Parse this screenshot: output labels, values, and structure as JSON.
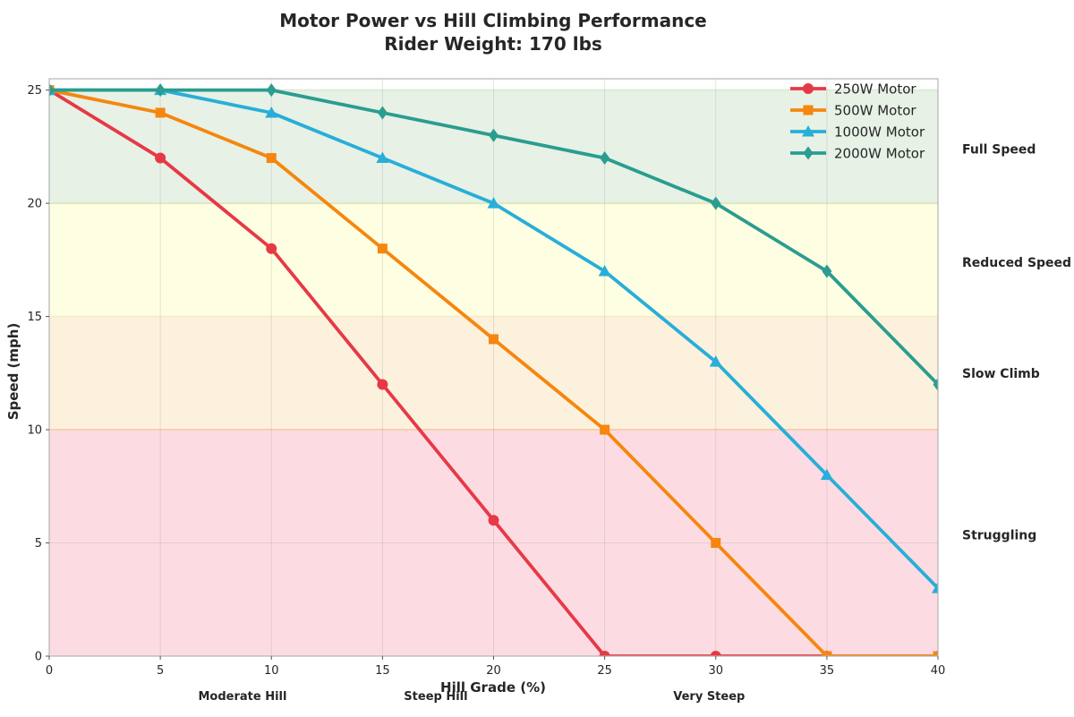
{
  "title": {
    "line1": "Motor Power vs Hill Climbing Performance",
    "line2": "Rider Weight: 170 lbs"
  },
  "chart_data": {
    "type": "line",
    "title": "Motor Power vs Hill Climbing Performance",
    "subtitle": "Rider Weight: 170 lbs",
    "xlabel": "Hill Grade (%)",
    "ylabel": "Speed (mph)",
    "xlim": [
      0,
      40
    ],
    "ylim": [
      0,
      25.5
    ],
    "x_ticks": [
      0,
      5,
      10,
      15,
      20,
      25,
      30,
      35,
      40
    ],
    "y_ticks": [
      0,
      5,
      10,
      15,
      20,
      25
    ],
    "grid": true,
    "legend_position": "upper right inside, no frame",
    "x": [
      0,
      5,
      10,
      15,
      20,
      25,
      30,
      35,
      40
    ],
    "series": [
      {
        "name": "250W Motor",
        "color": "#e63946",
        "marker": "circle",
        "values": [
          25,
          22,
          18,
          12,
          6,
          0,
          0,
          0,
          0
        ]
      },
      {
        "name": "500W Motor",
        "color": "#f6860d",
        "marker": "square",
        "values": [
          25,
          24,
          22,
          18,
          14,
          10,
          5,
          0,
          0
        ]
      },
      {
        "name": "1000W Motor",
        "color": "#28aed8",
        "marker": "triangle",
        "values": [
          25,
          25,
          24,
          22,
          20,
          17,
          13,
          8,
          3
        ]
      },
      {
        "name": "2000W Motor",
        "color": "#2a9d8f",
        "marker": "diamond",
        "values": [
          25,
          25,
          25,
          24,
          23,
          22,
          20,
          17,
          12
        ]
      }
    ],
    "bands": [
      {
        "label": "Full Speed",
        "from": 20,
        "to": 25,
        "fill": "#e7f1e6",
        "edge": "#dcecd9",
        "label_y": 22.4
      },
      {
        "label": "Reduced Speed",
        "from": 15,
        "to": 20,
        "fill": "#fefee3",
        "edge": "#dce9bd",
        "label_y": 17.4
      },
      {
        "label": "Slow Climb",
        "from": 10,
        "to": 15,
        "fill": "#fcf1dd",
        "edge": "#f5eec9",
        "label_y": 12.5
      },
      {
        "label": "Struggling",
        "from": 0,
        "to": 10,
        "fill": "#fcdce2",
        "edge": "#f8cfae",
        "label_y": 5.35
      }
    ],
    "x_annotations": [
      {
        "label": "Moderate Hill",
        "x": 8.7
      },
      {
        "label": "Steep Hill",
        "x": 17.4
      },
      {
        "label": "Very Steep",
        "x": 29.7
      }
    ]
  },
  "colors": {
    "plot_border": "#b3b3b3",
    "gridline": "rgba(128,128,128,0.2)",
    "text": "#262626"
  }
}
